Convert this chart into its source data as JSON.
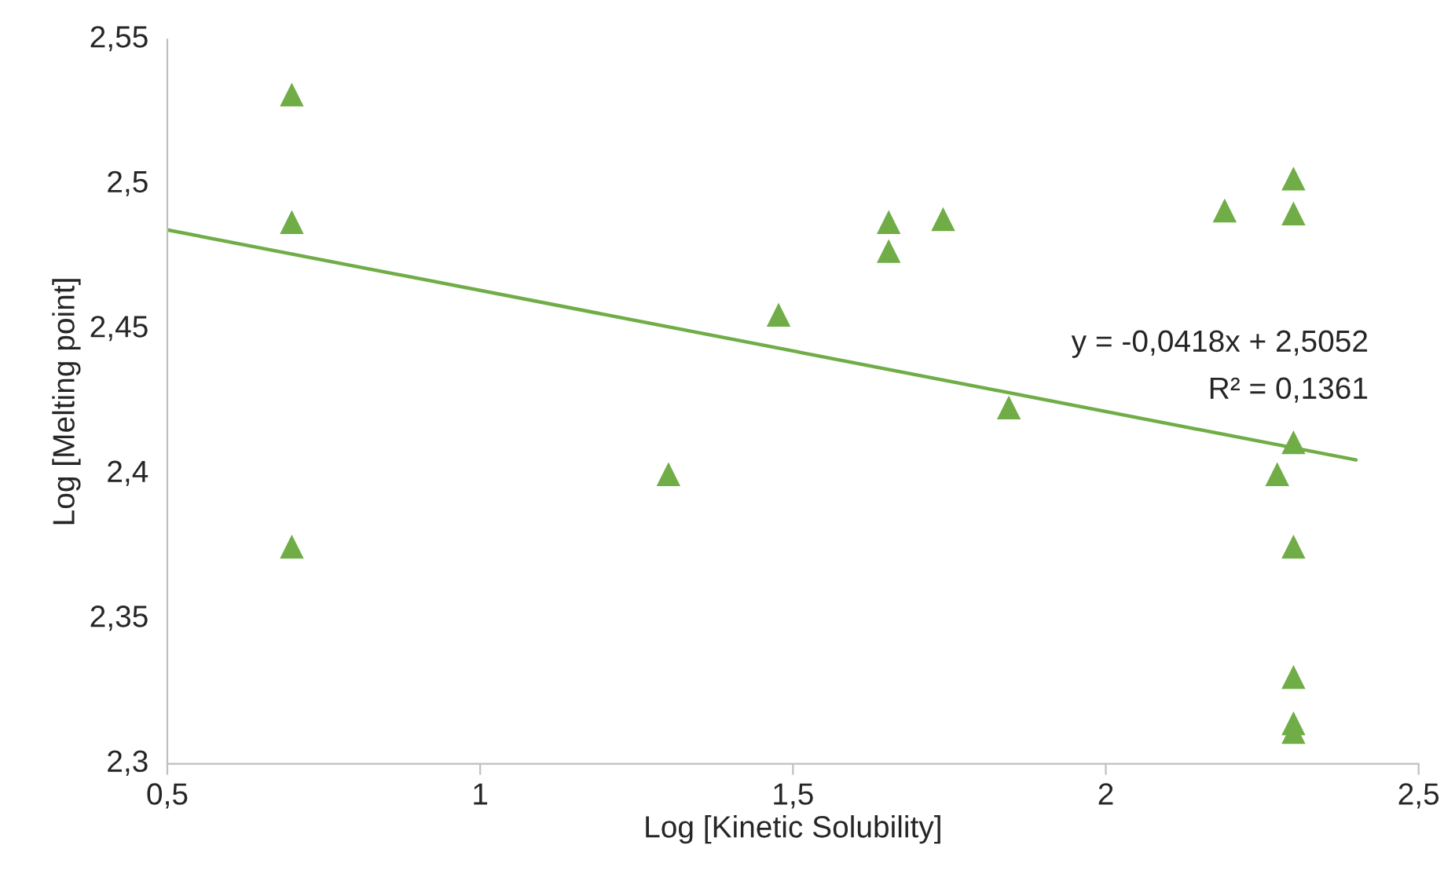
{
  "chart_data": {
    "type": "scatter",
    "xlabel": "Log [Kinetic Solubility]",
    "ylabel": "Log [Melting point]",
    "series": [
      {
        "color": "#70ad47",
        "marker": "triangle",
        "x": [
          0.699,
          0.699,
          0.699,
          1.301,
          1.477,
          1.653,
          1.653,
          1.74,
          1.845,
          2.19,
          2.274,
          2.3,
          2.3,
          2.3,
          2.3,
          2.3,
          2.3,
          2.3
        ],
        "values": [
          2.531,
          2.487,
          2.375,
          2.4,
          2.455,
          2.487,
          2.477,
          2.488,
          2.423,
          2.491,
          2.4,
          2.502,
          2.49,
          2.411,
          2.375,
          2.33,
          2.314,
          2.311
        ]
      },
      {
        "type": "line",
        "color": "#70ad47",
        "marker": "none",
        "line_style": "solid",
        "x": [
          0.5,
          2.4
        ],
        "values": [
          2.4843,
          2.4049
        ]
      }
    ],
    "annotations": [
      "y = -0,0418x + 2,5052",
      "R² = 0,1361"
    ],
    "xlim": [
      0.5,
      2.5
    ],
    "ylim": [
      2.3,
      2.55
    ],
    "xticks": [
      {
        "value": 0.5,
        "label": "0,5"
      },
      1,
      {
        "value": 1.5,
        "label": "1,5"
      },
      2,
      {
        "value": 2.5,
        "label": "2,5"
      }
    ],
    "yticks": [
      {
        "value": 2.3,
        "label": "2,3"
      },
      {
        "value": 2.35,
        "label": "2,35"
      },
      {
        "value": 2.4,
        "label": "2,4"
      },
      {
        "value": 2.45,
        "label": "2,45"
      },
      {
        "value": 2.5,
        "label": "2,5"
      },
      {
        "value": 2.55,
        "label": "2,55"
      }
    ],
    "grid": false,
    "legend": false
  }
}
